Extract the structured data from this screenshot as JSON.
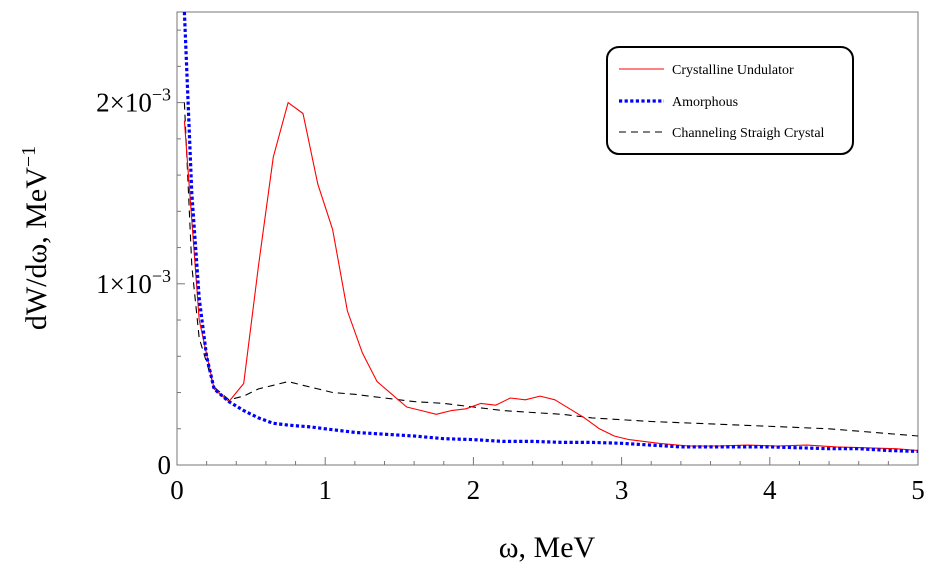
{
  "chart_data": {
    "type": "line",
    "title": "",
    "xlabel": "ω, MeV",
    "ylabel": "dW/dω, MeV",
    "ylabel_exponent": "−1",
    "xlim": [
      0,
      5
    ],
    "ylim": [
      0,
      0.0025
    ],
    "x_ticks": [
      {
        "value": 0,
        "label": "0"
      },
      {
        "value": 1,
        "label": "1"
      },
      {
        "value": 2,
        "label": "2"
      },
      {
        "value": 3,
        "label": "3"
      },
      {
        "value": 4,
        "label": "4"
      },
      {
        "value": 5,
        "label": "5"
      }
    ],
    "y_ticks": [
      {
        "value": 0,
        "mantissa": "0",
        "exponent": ""
      },
      {
        "value": 0.001,
        "mantissa": "1×10",
        "exponent": "−3"
      },
      {
        "value": 0.002,
        "mantissa": "2×10",
        "exponent": "−3"
      }
    ],
    "grid": false,
    "legend_position": "top-right",
    "series": [
      {
        "name": "Crystalline Undulator",
        "color": "#ff0000",
        "style": "solid",
        "x": [
          0.05,
          0.15,
          0.25,
          0.35,
          0.45,
          0.55,
          0.65,
          0.75,
          0.85,
          0.95,
          1.05,
          1.15,
          1.25,
          1.35,
          1.45,
          1.55,
          1.65,
          1.75,
          1.85,
          1.95,
          2.05,
          2.15,
          2.25,
          2.35,
          2.45,
          2.55,
          2.65,
          2.75,
          2.85,
          2.95,
          3.05,
          3.25,
          3.45,
          3.65,
          3.85,
          4.05,
          4.25,
          4.45,
          4.65,
          4.85,
          5.0
        ],
        "values": [
          0.0019,
          0.0008,
          0.00042,
          0.00035,
          0.00045,
          0.0011,
          0.0017,
          0.002,
          0.00194,
          0.00155,
          0.0013,
          0.00085,
          0.00062,
          0.00046,
          0.00039,
          0.00032,
          0.0003,
          0.00028,
          0.0003,
          0.00031,
          0.00034,
          0.00033,
          0.00037,
          0.00036,
          0.00038,
          0.00036,
          0.00031,
          0.00026,
          0.0002,
          0.00016,
          0.00014,
          0.00012,
          0.000105,
          0.000105,
          0.00011,
          0.000105,
          0.00011,
          0.0001,
          9.5e-05,
          9e-05,
          8e-05
        ]
      },
      {
        "name": "Amorphous",
        "color": "#0000ff",
        "style": "dotted",
        "x": [
          0.05,
          0.1,
          0.15,
          0.2,
          0.25,
          0.35,
          0.45,
          0.55,
          0.65,
          0.75,
          0.9,
          1.0,
          1.2,
          1.4,
          1.6,
          1.8,
          2.0,
          2.2,
          2.4,
          2.6,
          2.8,
          3.0,
          3.2,
          3.4,
          3.6,
          3.8,
          4.0,
          4.2,
          4.4,
          4.6,
          4.8,
          5.0
        ],
        "values": [
          0.0025,
          0.0015,
          0.00092,
          0.0006,
          0.00042,
          0.00035,
          0.0003,
          0.00026,
          0.00023,
          0.00022,
          0.00021,
          0.0002,
          0.00018,
          0.00017,
          0.00016,
          0.000145,
          0.00014,
          0.00013,
          0.00013,
          0.000125,
          0.000125,
          0.00012,
          0.00011,
          0.0001,
          0.0001,
          0.0001,
          0.0001,
          9.5e-05,
          9e-05,
          9e-05,
          8e-05,
          7.5e-05
        ]
      },
      {
        "name": "Channeling Straigh Crystal",
        "color": "#000000",
        "style": "dashed",
        "x": [
          0.05,
          0.1,
          0.15,
          0.25,
          0.35,
          0.45,
          0.55,
          0.65,
          0.75,
          0.85,
          0.95,
          1.05,
          1.2,
          1.4,
          1.6,
          1.8,
          2.0,
          2.2,
          2.4,
          2.6,
          2.8,
          3.0,
          3.2,
          3.5,
          3.8,
          4.1,
          4.4,
          4.7,
          5.0
        ],
        "values": [
          0.002,
          0.0011,
          0.0007,
          0.00043,
          0.00036,
          0.00038,
          0.00042,
          0.00044,
          0.00046,
          0.00044,
          0.00042,
          0.0004,
          0.00039,
          0.00037,
          0.00035,
          0.00034,
          0.00032,
          0.0003,
          0.00029,
          0.00028,
          0.00026,
          0.00025,
          0.00024,
          0.00023,
          0.00022,
          0.00021,
          0.0002,
          0.00018,
          0.00016
        ]
      }
    ]
  }
}
